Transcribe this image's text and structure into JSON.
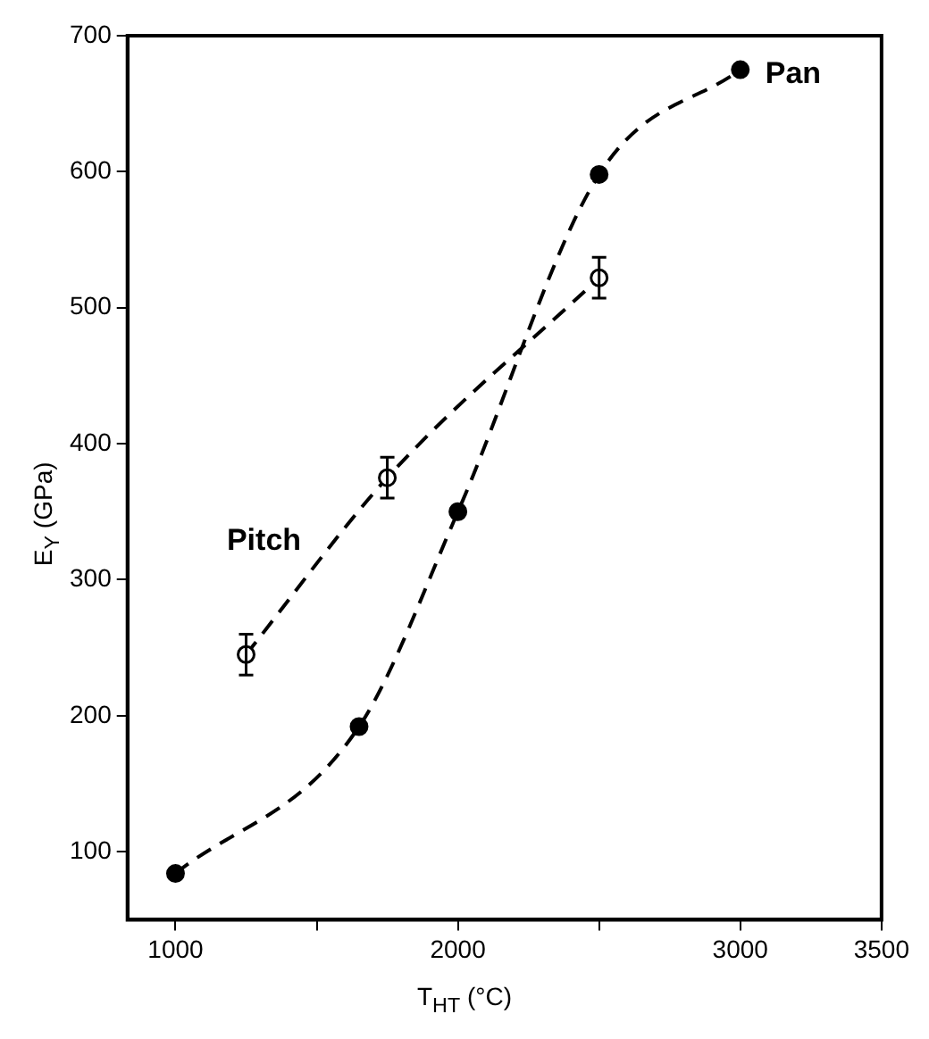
{
  "chart_data": {
    "type": "line",
    "xlabel": "T$_{HT}$ (°C)",
    "ylabel": "E$_{Y}$ (GPa)",
    "series": [
      {
        "name": "Pan",
        "color": "#000000",
        "x": [
          1000,
          1650,
          2000,
          2500,
          3000
        ],
        "values": [
          84,
          192,
          350,
          598,
          675
        ]
      },
      {
        "name": "Pitch",
        "color": "#000000",
        "x": [
          1250,
          1750,
          2500
        ],
        "values": [
          245,
          375,
          522
        ],
        "errors": [
          15,
          15,
          15
        ]
      }
    ],
    "xlim": [
      830,
      3500
    ],
    "xticks": [
      1000,
      {
        "value": 1500,
        "label": null
      },
      2000,
      {
        "value": 2500,
        "label": null
      },
      3000,
      3500
    ],
    "ylim": [
      50,
      700
    ],
    "yticks": [
      100,
      200,
      300,
      400,
      500,
      600,
      700
    ],
    "grid": false,
    "legend": false,
    "marker": "circle",
    "line_style": "dashed"
  }
}
